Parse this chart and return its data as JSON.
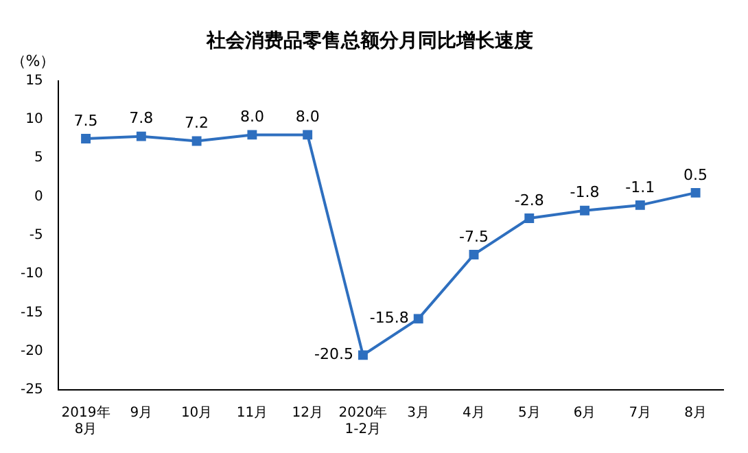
{
  "chart_data": {
    "type": "line",
    "title": "社会消费品零售总额分月同比增长速度",
    "ylabel": "（%）",
    "categories": [
      "2019年\n8月",
      "9月",
      "10月",
      "11月",
      "12月",
      "2020年\n1-2月",
      "3月",
      "4月",
      "5月",
      "6月",
      "7月",
      "8月"
    ],
    "series": [
      {
        "color": "#2e6fbf",
        "values": [
          7.5,
          7.8,
          7.2,
          8.0,
          8.0,
          -20.5,
          -15.8,
          -7.5,
          -2.8,
          -1.8,
          -1.1,
          0.5
        ],
        "value_labels": [
          "7.5",
          "7.8",
          "7.2",
          "8.0",
          "8.0",
          "-20.5",
          "-15.8",
          "-7.5",
          "-2.8",
          "-1.8",
          "-1.1",
          "0.5"
        ]
      }
    ],
    "ylim": [
      -25,
      15
    ],
    "yticks": [
      -25,
      -20,
      -15,
      -10,
      -5,
      0,
      5,
      10,
      15
    ],
    "grid": false,
    "legend": false,
    "marker": "square",
    "line_style": "solid"
  }
}
